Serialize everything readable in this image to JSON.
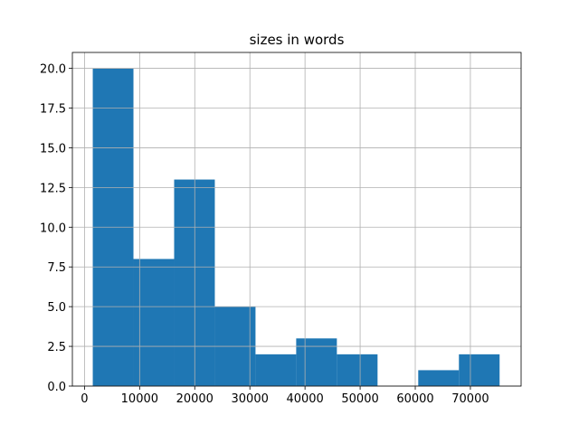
{
  "chart_data": {
    "type": "histogram",
    "title": "sizes in words",
    "bins": [
      1500,
      8880,
      16260,
      23640,
      31020,
      38400,
      45780,
      53160,
      60540,
      67920,
      75300
    ],
    "counts": [
      20,
      8,
      13,
      5,
      2,
      3,
      2,
      0,
      1,
      2
    ],
    "color": "#1f77b4",
    "xlim": [
      -2200,
      79200
    ],
    "ylim": [
      0,
      21
    ],
    "xticks": [
      0,
      10000,
      20000,
      30000,
      40000,
      50000,
      60000,
      70000
    ],
    "yticks": [
      {
        "value": 0,
        "label": "0.0"
      },
      {
        "value": 2.5,
        "label": "2.5"
      },
      {
        "value": 5,
        "label": "5.0"
      },
      {
        "value": 7.5,
        "label": "7.5"
      },
      {
        "value": 10,
        "label": "10.0"
      },
      {
        "value": 12.5,
        "label": "12.5"
      },
      {
        "value": 15,
        "label": "15.0"
      },
      {
        "value": 17.5,
        "label": "17.5"
      },
      {
        "value": 20,
        "label": "20.0"
      }
    ],
    "grid": true
  }
}
